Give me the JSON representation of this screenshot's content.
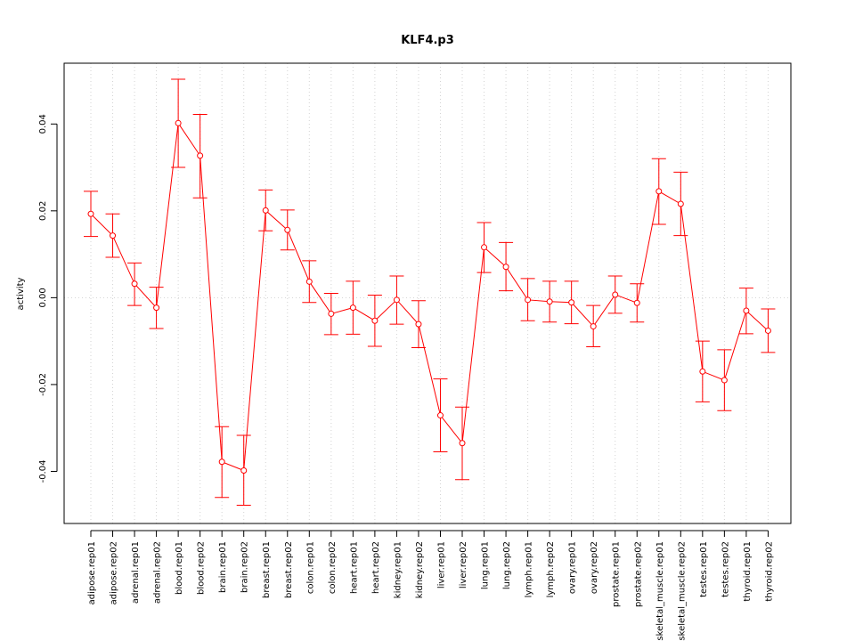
{
  "chart_data": {
    "type": "line",
    "title": "KLF4.p3",
    "xlabel": "",
    "ylabel": "activity",
    "ylim": [
      -0.052,
      0.054
    ],
    "yticks": [
      -0.04,
      -0.02,
      0.0,
      0.02,
      0.04
    ],
    "ytick_labels": [
      "-0.04",
      "-0.02",
      "0.00",
      "0.02",
      "0.04"
    ],
    "grid": true,
    "color": "#ff0000",
    "grid_color": "#d3d3d3",
    "categories": [
      "adipose.rep01",
      "adipose.rep02",
      "adrenal.rep01",
      "adrenal.rep02",
      "blood.rep01",
      "blood.rep02",
      "brain.rep01",
      "brain.rep02",
      "breast.rep01",
      "breast.rep02",
      "colon.rep01",
      "colon.rep02",
      "heart.rep01",
      "heart.rep02",
      "kidney.rep01",
      "kidney.rep02",
      "liver.rep01",
      "liver.rep02",
      "lung.rep01",
      "lung.rep02",
      "lymph.rep01",
      "lymph.rep02",
      "ovary.rep01",
      "ovary.rep02",
      "prostate.rep01",
      "prostate.rep02",
      "skeletal_muscle.rep01",
      "skeletal_muscle.rep02",
      "testes.rep01",
      "testes.rep02",
      "thyroid.rep01",
      "thyroid.rep02"
    ],
    "values": [
      0.0193,
      0.0143,
      0.0032,
      -0.0023,
      0.0402,
      0.0327,
      -0.0378,
      -0.0398,
      0.0201,
      0.0156,
      0.0037,
      -0.0037,
      -0.0023,
      -0.0053,
      -0.0005,
      -0.0061,
      -0.0271,
      -0.0335,
      0.0116,
      0.0071,
      -0.0005,
      -0.0009,
      -0.0011,
      -0.0066,
      0.0007,
      -0.0012,
      0.0245,
      0.0216,
      -0.017,
      -0.019,
      -0.003,
      -0.0076
    ],
    "lower": [
      0.0141,
      0.0093,
      -0.0018,
      -0.0071,
      0.03,
      0.023,
      -0.046,
      -0.0478,
      0.0154,
      0.011,
      -0.0011,
      -0.0085,
      -0.0084,
      -0.0112,
      -0.0061,
      -0.0115,
      -0.0355,
      -0.0419,
      0.0058,
      0.0016,
      -0.0053,
      -0.0056,
      -0.006,
      -0.0113,
      -0.0036,
      -0.0056,
      0.0169,
      0.0143,
      -0.024,
      -0.026,
      -0.0083,
      -0.0126
    ],
    "upper": [
      0.0245,
      0.0193,
      0.008,
      0.0024,
      0.0503,
      0.0422,
      -0.0297,
      -0.0317,
      0.0248,
      0.0202,
      0.0085,
      0.001,
      0.0038,
      0.0006,
      0.005,
      -0.0007,
      -0.0187,
      -0.0252,
      0.0173,
      0.0127,
      0.0044,
      0.0038,
      0.0038,
      -0.0018,
      0.005,
      0.0032,
      0.032,
      0.0289,
      -0.01,
      -0.012,
      0.0022,
      -0.0026
    ]
  }
}
